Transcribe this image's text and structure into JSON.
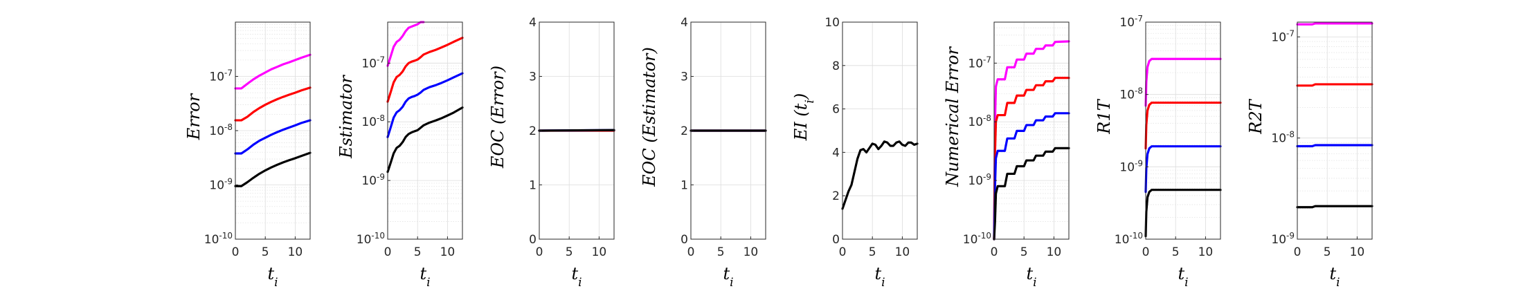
{
  "figure": {
    "panel_count": 8
  },
  "chart_data": [
    {
      "type": "line",
      "ylabel": "Error",
      "xlabel": "t_i",
      "yscale": "log",
      "ylim": [
        1e-10,
        1e-06
      ],
      "xlim": [
        0,
        12.5
      ],
      "xticks": [
        0,
        5,
        10
      ],
      "yticks": [
        1e-10,
        1e-09,
        1e-08,
        1e-07
      ],
      "ytick_labels": [
        "10-10",
        "10-9",
        "10-8",
        "10-7"
      ],
      "grid": true,
      "series": [
        {
          "color": "#ff00ff",
          "x": [
            0,
            1,
            2,
            3,
            4,
            5,
            6,
            7,
            8,
            9,
            10,
            11,
            12.5
          ],
          "y": [
            6e-08,
            6e-08,
            7.3e-08,
            8.8e-08,
            1.03e-07,
            1.18e-07,
            1.35e-07,
            1.5e-07,
            1.67e-07,
            1.82e-07,
            2e-07,
            2.2e-07,
            2.5e-07
          ]
        },
        {
          "color": "#ff0000",
          "x": [
            0,
            1,
            2,
            3,
            4,
            5,
            6,
            7,
            8,
            9,
            10,
            11,
            12.5
          ],
          "y": [
            1.55e-08,
            1.55e-08,
            1.8e-08,
            2.2e-08,
            2.6e-08,
            3e-08,
            3.4e-08,
            3.8e-08,
            4.2e-08,
            4.6e-08,
            5e-08,
            5.5e-08,
            6.2e-08
          ]
        },
        {
          "color": "#0000ff",
          "x": [
            0,
            1,
            2,
            3,
            4,
            5,
            6,
            7,
            8,
            9,
            10,
            11,
            12.5
          ],
          "y": [
            3.8e-09,
            3.8e-09,
            4.5e-09,
            5.5e-09,
            6.5e-09,
            7.4e-09,
            8.4e-09,
            9.4e-09,
            1.04e-08,
            1.14e-08,
            1.25e-08,
            1.38e-08,
            1.55e-08
          ]
        },
        {
          "color": "#000000",
          "x": [
            0,
            1,
            2,
            3,
            4,
            5,
            6,
            7,
            8,
            9,
            10,
            11,
            12.5
          ],
          "y": [
            9.5e-10,
            9.5e-10,
            1.12e-09,
            1.35e-09,
            1.6e-09,
            1.85e-09,
            2.1e-09,
            2.35e-09,
            2.6e-09,
            2.85e-09,
            3.1e-09,
            3.4e-09,
            3.9e-09
          ]
        }
      ]
    },
    {
      "type": "line",
      "ylabel": "Estimator",
      "xlabel": "t_i",
      "yscale": "log",
      "ylim": [
        1e-10,
        5e-07
      ],
      "xlim": [
        0,
        12.5
      ],
      "xticks": [
        0,
        5,
        10
      ],
      "yticks": [
        1e-10,
        1e-09,
        1e-08,
        1e-07
      ],
      "ytick_labels": [
        "10-10",
        "10-9",
        "10-8",
        "10-7"
      ],
      "grid": true,
      "series": [
        {
          "color": "#ff00ff",
          "x": [
            0,
            0.5,
            1,
            1.5,
            2,
            2.5,
            3,
            3.5,
            4,
            4.5,
            5,
            5.5,
            6
          ],
          "y": [
            9e-08,
            1.3e-07,
            1.9e-07,
            2.3e-07,
            2.5e-07,
            2.9e-07,
            3.5e-07,
            4e-07,
            4.2e-07,
            4.4e-07,
            4.6e-07,
            5e-07,
            5.2e-07
          ]
        },
        {
          "color": "#ff0000",
          "x": [
            0,
            0.5,
            1,
            1.5,
            2,
            2.5,
            3,
            3.5,
            4,
            4.5,
            5,
            5.5,
            6,
            7,
            8,
            9,
            10,
            11,
            12.5
          ],
          "y": [
            2.2e-08,
            3.2e-08,
            4.7e-08,
            5.8e-08,
            6.3e-08,
            7.2e-08,
            8.8e-08,
            1e-07,
            1.06e-07,
            1.1e-07,
            1.15e-07,
            1.26e-07,
            1.4e-07,
            1.55e-07,
            1.68e-07,
            1.85e-07,
            2.05e-07,
            2.3e-07,
            2.7e-07
          ]
        },
        {
          "color": "#0000ff",
          "x": [
            0,
            0.5,
            1,
            1.5,
            2,
            2.5,
            3,
            3.5,
            4,
            4.5,
            5,
            5.5,
            6,
            7,
            8,
            9,
            10,
            11,
            12.5
          ],
          "y": [
            5.5e-09,
            8e-09,
            1.18e-08,
            1.45e-08,
            1.58e-08,
            1.8e-08,
            2.2e-08,
            2.5e-08,
            2.65e-08,
            2.75e-08,
            2.9e-08,
            3.15e-08,
            3.5e-08,
            3.9e-08,
            4.2e-08,
            4.6e-08,
            5.1e-08,
            5.7e-08,
            6.7e-08
          ]
        },
        {
          "color": "#000000",
          "x": [
            0,
            0.5,
            1,
            1.5,
            2,
            2.5,
            3,
            3.5,
            4,
            4.5,
            5,
            5.5,
            6,
            7,
            8,
            9,
            10,
            11,
            12.5
          ],
          "y": [
            1.4e-09,
            2e-09,
            2.9e-09,
            3.6e-09,
            3.9e-09,
            4.5e-09,
            5.5e-09,
            6.2e-09,
            6.6e-09,
            6.9e-09,
            7.2e-09,
            7.9e-09,
            8.7e-09,
            9.7e-09,
            1.05e-08,
            1.15e-08,
            1.28e-08,
            1.43e-08,
            1.75e-08
          ]
        }
      ]
    },
    {
      "type": "line",
      "ylabel": "EOC (Error)",
      "xlabel": "t_i",
      "yscale": "linear",
      "ylim": [
        0,
        4
      ],
      "xlim": [
        0,
        12.5
      ],
      "xticks": [
        0,
        5,
        10
      ],
      "yticks": [
        0,
        1,
        2,
        3,
        4
      ],
      "ytick_labels": [
        "0",
        "1",
        "2",
        "3",
        "4"
      ],
      "grid": true,
      "series": [
        {
          "color": "#ff0000",
          "x": [
            0,
            12.5
          ],
          "y": [
            2.0,
            2.0
          ]
        },
        {
          "color": "#0000ff",
          "x": [
            0,
            12.5
          ],
          "y": [
            2.0,
            2.01
          ]
        },
        {
          "color": "#000000",
          "x": [
            0,
            12.5
          ],
          "y": [
            2.0,
            2.01
          ]
        }
      ]
    },
    {
      "type": "line",
      "ylabel": "EOC (Estimator)",
      "xlabel": "t_i",
      "yscale": "linear",
      "ylim": [
        0,
        4
      ],
      "xlim": [
        0,
        12.5
      ],
      "xticks": [
        0,
        5,
        10
      ],
      "yticks": [
        0,
        1,
        2,
        3,
        4
      ],
      "ytick_labels": [
        "0",
        "1",
        "2",
        "3",
        "4"
      ],
      "grid": true,
      "series": [
        {
          "color": "#ff0000",
          "x": [
            0,
            12.5
          ],
          "y": [
            2.0,
            2.0
          ]
        },
        {
          "color": "#0000ff",
          "x": [
            0,
            12.5
          ],
          "y": [
            2.0,
            2.0
          ]
        },
        {
          "color": "#000000",
          "x": [
            0,
            12.5
          ],
          "y": [
            2.0,
            2.0
          ]
        }
      ]
    },
    {
      "type": "line",
      "ylabel": "EI (t_i)",
      "xlabel": "t_i",
      "yscale": "linear",
      "ylim": [
        0,
        10
      ],
      "xlim": [
        0,
        12.5
      ],
      "xticks": [
        0,
        5,
        10
      ],
      "yticks": [
        0,
        2,
        4,
        6,
        8,
        10
      ],
      "ytick_labels": [
        "0",
        "2",
        "4",
        "6",
        "8",
        "10"
      ],
      "grid": true,
      "series": [
        {
          "color": "#000000",
          "x": [
            0,
            0.5,
            1,
            1.5,
            2,
            2.5,
            3,
            3.5,
            4,
            4.5,
            5,
            5.5,
            6,
            6.5,
            7,
            7.5,
            8,
            8.5,
            9,
            9.5,
            10,
            10.5,
            11,
            11.5,
            12,
            12.5
          ],
          "y": [
            1.4,
            1.8,
            2.2,
            2.5,
            3.1,
            3.7,
            4.1,
            4.15,
            4.0,
            4.2,
            4.4,
            4.35,
            4.15,
            4.3,
            4.5,
            4.45,
            4.3,
            4.3,
            4.45,
            4.5,
            4.35,
            4.3,
            4.45,
            4.45,
            4.35,
            4.4
          ]
        }
      ]
    },
    {
      "type": "line",
      "ylabel": "Numerical Error",
      "xlabel": "t_i",
      "yscale": "log",
      "ylim": [
        1e-10,
        5e-07
      ],
      "xlim": [
        0,
        12.5
      ],
      "xticks": [
        0,
        5,
        10
      ],
      "yticks": [
        1e-10,
        1e-09,
        1e-08,
        1e-07
      ],
      "ytick_labels": [
        "10-10",
        "10-9",
        "10-8",
        "10-7"
      ],
      "grid": true,
      "series": [
        {
          "color": "#ff00ff",
          "x": [
            0,
            0.15,
            0.3,
            0.6,
            1,
            1.8,
            2.2,
            3.4,
            3.8,
            5,
            5.4,
            6.6,
            7,
            8.2,
            8.6,
            9.8,
            10.2,
            12.5
          ],
          "y": [
            1e-10,
            1e-08,
            4e-08,
            5.3e-08,
            5.3e-08,
            5.3e-08,
            8.5e-08,
            8.5e-08,
            1.15e-07,
            1.15e-07,
            1.45e-07,
            1.45e-07,
            1.75e-07,
            1.75e-07,
            2e-07,
            2e-07,
            2.3e-07,
            2.35e-07
          ]
        },
        {
          "color": "#ff0000",
          "x": [
            0,
            0.15,
            0.3,
            0.6,
            1,
            1.8,
            2.2,
            3.4,
            3.8,
            5,
            5.4,
            6.6,
            7,
            8.2,
            8.6,
            9.8,
            10.2,
            12.5
          ],
          "y": [
            1e-10,
            3e-09,
            1e-08,
            1.3e-08,
            1.3e-08,
            1.3e-08,
            2.1e-08,
            2.1e-08,
            2.8e-08,
            2.8e-08,
            3.5e-08,
            3.5e-08,
            4.2e-08,
            4.2e-08,
            4.9e-08,
            4.9e-08,
            5.6e-08,
            5.6e-08
          ]
        },
        {
          "color": "#0000ff",
          "x": [
            0,
            0.15,
            0.3,
            0.6,
            1,
            1.8,
            2.2,
            3.4,
            3.8,
            5,
            5.4,
            6.6,
            7,
            8.2,
            8.6,
            9.8,
            10.2,
            12.5
          ],
          "y": [
            1e-10,
            8e-10,
            2.4e-09,
            3.2e-09,
            3.2e-09,
            3.2e-09,
            5.2e-09,
            5.2e-09,
            7e-09,
            7e-09,
            8.8e-09,
            8.8e-09,
            1.06e-08,
            1.06e-08,
            1.23e-08,
            1.23e-08,
            1.4e-08,
            1.4e-08
          ]
        },
        {
          "color": "#000000",
          "x": [
            0,
            0.15,
            0.3,
            0.6,
            1,
            1.8,
            2.2,
            3.4,
            3.8,
            5,
            5.4,
            6.6,
            7,
            8.2,
            8.6,
            9.8,
            10.2,
            12.5
          ],
          "y": [
            1e-10,
            2e-10,
            6e-10,
            8e-10,
            8e-10,
            8e-10,
            1.3e-09,
            1.3e-09,
            1.75e-09,
            1.75e-09,
            2.2e-09,
            2.2e-09,
            2.65e-09,
            2.65e-09,
            3.1e-09,
            3.1e-09,
            3.55e-09,
            3.55e-09
          ]
        }
      ]
    },
    {
      "type": "line",
      "ylabel": "R1T",
      "xlabel": "t_i",
      "yscale": "log",
      "ylim": [
        1e-10,
        1e-07
      ],
      "xlim": [
        0,
        12.5
      ],
      "xticks": [
        0,
        5,
        10
      ],
      "yticks": [
        1e-10,
        1e-09,
        1e-08,
        1e-07
      ],
      "ytick_labels": [
        "10-10",
        "10-9",
        "10-8",
        "10-7"
      ],
      "grid": true,
      "series": [
        {
          "color": "#ff00ff",
          "x": [
            0,
            0.1,
            0.3,
            0.6,
            1,
            1.5,
            12.5
          ],
          "y": [
            7e-09,
            1.5e-08,
            2.4e-08,
            2.9e-08,
            3.1e-08,
            3.1e-08,
            3.1e-08
          ]
        },
        {
          "color": "#ff0000",
          "x": [
            0,
            0.1,
            0.3,
            0.6,
            1,
            1.5,
            12.5
          ],
          "y": [
            1.8e-09,
            3.8e-09,
            6e-09,
            7.2e-09,
            7.7e-09,
            7.7e-09,
            7.7e-09
          ]
        },
        {
          "color": "#0000ff",
          "x": [
            0,
            0.1,
            0.3,
            0.6,
            1,
            1.5,
            12.5
          ],
          "y": [
            4.5e-10,
            9.5e-10,
            1.5e-09,
            1.8e-09,
            1.92e-09,
            1.92e-09,
            1.92e-09
          ]
        },
        {
          "color": "#000000",
          "x": [
            0,
            0.1,
            0.3,
            0.6,
            1,
            1.5,
            12.5
          ],
          "y": [
            1.1e-10,
            2.4e-10,
            3.8e-10,
            4.5e-10,
            4.8e-10,
            4.8e-10,
            4.8e-10
          ]
        }
      ]
    },
    {
      "type": "line",
      "ylabel": "R2T",
      "xlabel": "t_i",
      "yscale": "log",
      "ylim": [
        1e-09,
        1.4e-07
      ],
      "xlim": [
        0,
        12.5
      ],
      "xticks": [
        0,
        5,
        10
      ],
      "yticks": [
        1e-09,
        1e-08,
        1e-07
      ],
      "ytick_labels": [
        "10-9",
        "10-8",
        "10-7"
      ],
      "grid": true,
      "series": [
        {
          "color": "#ff00ff",
          "x": [
            0,
            2.5,
            3,
            12.5
          ],
          "y": [
            1.33e-07,
            1.33e-07,
            1.36e-07,
            1.36e-07
          ]
        },
        {
          "color": "#ff0000",
          "x": [
            0,
            2.5,
            3,
            12.5
          ],
          "y": [
            3.3e-08,
            3.3e-08,
            3.4e-08,
            3.4e-08
          ]
        },
        {
          "color": "#0000ff",
          "x": [
            0,
            2.5,
            3,
            12.5
          ],
          "y": [
            8.3e-09,
            8.3e-09,
            8.5e-09,
            8.5e-09
          ]
        },
        {
          "color": "#000000",
          "x": [
            0,
            2.5,
            3,
            12.5
          ],
          "y": [
            2.07e-09,
            2.07e-09,
            2.12e-09,
            2.12e-09
          ]
        }
      ]
    }
  ]
}
